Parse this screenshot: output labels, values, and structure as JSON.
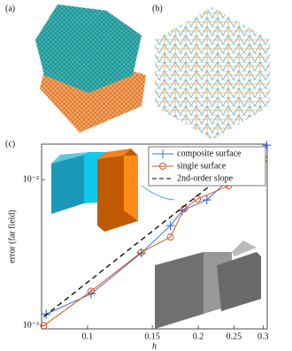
{
  "panel_labels": [
    "(a)",
    "(b)",
    "(c)"
  ],
  "chart_data": {
    "type": "line",
    "xlabel": "h",
    "ylabel": "error (far field)",
    "xscale": "log",
    "yscale": "log",
    "xlim": [
      0.075,
      0.308
    ],
    "ylim": [
      0.00095,
      0.0175
    ],
    "xticks": [
      0.1,
      0.15,
      0.2,
      0.25,
      0.3
    ],
    "yticks": [
      {
        "value": 0.001,
        "label": "10⁻³"
      },
      {
        "value": 0.01,
        "label": "10⁻²"
      }
    ],
    "legend": "upper right",
    "series": [
      {
        "name": "composite surface",
        "color": "#3b6fd8",
        "marker": "plus",
        "dash": false,
        "x": [
          0.0772,
          0.1022,
          0.14,
          0.168,
          0.181,
          0.211,
          0.307
        ],
        "values": [
          0.0012,
          0.00165,
          0.00314,
          0.00484,
          0.00614,
          0.00726,
          0.0172
        ]
      },
      {
        "name": "single surface",
        "color": "#d9541e",
        "marker": "circle",
        "dash": false,
        "x": [
          0.076,
          0.1022,
          0.14,
          0.168,
          0.183,
          0.199,
          0.242,
          0.302
        ],
        "values": [
          0.001,
          0.00172,
          0.00318,
          0.00404,
          0.0063,
          0.00736,
          0.00907,
          0.0138
        ]
      },
      {
        "name": "2nd-order slope",
        "color": "#000000",
        "marker": "none",
        "dash": true,
        "x": [
          0.076,
          0.29
        ],
        "values": [
          0.00115,
          0.0164
        ]
      }
    ]
  }
}
